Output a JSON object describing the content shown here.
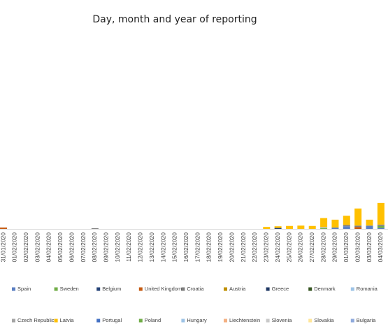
{
  "chart_data": {
    "type": "bar",
    "stacked": true,
    "title": "Day, month and year of reporting",
    "categories": [
      "31/01/2020",
      "01/02/2020",
      "02/02/2020",
      "03/02/2020",
      "04/02/2020",
      "05/02/2020",
      "06/02/2020",
      "07/02/2020",
      "08/02/2020",
      "09/02/2020",
      "10/02/2020",
      "11/02/2020",
      "12/02/2020",
      "13/02/2020",
      "14/02/2020",
      "15/02/2020",
      "16/02/2020",
      "17/02/2020",
      "18/02/2020",
      "19/02/2020",
      "20/02/2020",
      "21/02/2020",
      "22/02/2020",
      "23/02/2020",
      "24/02/2020",
      "25/02/2020",
      "26/02/2020",
      "27/02/2020",
      "28/02/2020",
      "29/02/2020",
      "01/03/2020",
      "02/03/2020",
      "03/03/2020",
      "04/03/2020"
    ],
    "ylim": [
      0,
      600
    ],
    "series": [
      {
        "name": "Spain",
        "color": "#5b7fc2",
        "values": [
          0,
          0,
          0,
          0,
          0,
          0,
          0,
          0,
          0,
          0,
          0,
          0,
          0,
          0,
          0,
          0,
          0,
          0,
          0,
          0,
          0,
          0,
          0,
          0,
          0,
          0,
          0,
          0,
          0,
          4,
          8,
          0,
          10,
          3
        ]
      },
      {
        "name": "Sweden",
        "color": "#70ad47",
        "values": [
          0,
          0,
          0,
          0,
          0,
          0,
          0,
          0,
          0,
          0,
          0,
          0,
          0,
          0,
          0,
          0,
          0,
          0,
          0,
          0,
          0,
          0,
          0,
          0,
          0,
          0,
          0,
          0,
          2,
          0,
          0,
          0,
          0,
          6
        ]
      },
      {
        "name": "Belgium",
        "color": "#264478",
        "values": [
          0,
          0,
          0,
          0,
          0,
          0,
          0,
          0,
          0,
          0,
          0,
          0,
          0,
          0,
          0,
          0,
          0,
          0,
          0,
          0,
          0,
          0,
          0,
          0,
          3,
          0,
          0,
          0,
          0,
          0,
          0,
          0,
          0,
          0
        ]
      },
      {
        "name": "United Kingdom",
        "color": "#c55a11",
        "values": [
          4,
          0,
          0,
          0,
          0,
          0,
          0,
          0,
          0,
          0,
          0,
          0,
          0,
          0,
          0,
          0,
          0,
          0,
          0,
          0,
          0,
          0,
          0,
          0,
          0,
          0,
          0,
          0,
          0,
          0,
          0,
          6,
          0,
          0
        ]
      },
      {
        "name": "Croatia",
        "color": "#7f7f7f",
        "values": [
          0,
          0,
          0,
          0,
          0,
          0,
          0,
          0,
          2,
          0,
          0,
          0,
          0,
          0,
          0,
          0,
          0,
          0,
          0,
          0,
          0,
          0,
          0,
          0,
          0,
          0,
          0,
          0,
          0,
          0,
          4,
          4,
          0,
          4
        ]
      },
      {
        "name": "Austria",
        "color": "#bf9000",
        "values": [
          0,
          0,
          0,
          0,
          0,
          0,
          0,
          0,
          0,
          0,
          0,
          0,
          0,
          0,
          0,
          0,
          0,
          0,
          0,
          0,
          0,
          0,
          0,
          0,
          0,
          0,
          0,
          0,
          0,
          0,
          0,
          0,
          0,
          0
        ]
      },
      {
        "name": "Greece",
        "color": "#203864",
        "values": [
          0,
          0,
          0,
          0,
          0,
          0,
          0,
          0,
          0,
          0,
          0,
          0,
          0,
          0,
          0,
          0,
          0,
          0,
          0,
          0,
          0,
          0,
          0,
          0,
          0,
          0,
          0,
          0,
          0,
          0,
          0,
          0,
          0,
          0
        ]
      },
      {
        "name": "Denmark",
        "color": "#375623",
        "values": [
          0,
          0,
          0,
          0,
          0,
          0,
          0,
          0,
          0,
          0,
          0,
          0,
          0,
          0,
          0,
          0,
          0,
          0,
          0,
          0,
          0,
          0,
          0,
          0,
          0,
          0,
          0,
          0,
          0,
          0,
          0,
          0,
          0,
          0
        ]
      },
      {
        "name": "Romania",
        "color": "#9dc3e6",
        "values": [
          0,
          0,
          0,
          0,
          0,
          0,
          0,
          0,
          0,
          0,
          0,
          0,
          0,
          0,
          0,
          0,
          0,
          0,
          0,
          0,
          0,
          0,
          0,
          0,
          0,
          0,
          0,
          0,
          3,
          0,
          0,
          0,
          0,
          0
        ]
      },
      {
        "name": "Czech Republic",
        "color": "#a5a5a5",
        "values": [
          0,
          0,
          0,
          0,
          0,
          0,
          0,
          0,
          0,
          0,
          0,
          0,
          0,
          0,
          0,
          0,
          0,
          0,
          0,
          0,
          0,
          0,
          0,
          0,
          0,
          0,
          0,
          0,
          0,
          0,
          0,
          0,
          0,
          0
        ]
      },
      {
        "name": "Latvia",
        "color": "#ffc000",
        "values": [
          0,
          0,
          0,
          0,
          0,
          0,
          0,
          0,
          0,
          0,
          0,
          0,
          0,
          0,
          0,
          0,
          0,
          0,
          0,
          0,
          0,
          0,
          0,
          6,
          5,
          9,
          10,
          9,
          28,
          24,
          28,
          52,
          18,
          66
        ]
      },
      {
        "name": "Portugal",
        "color": "#4472c4",
        "values": [
          0,
          0,
          0,
          0,
          0,
          0,
          0,
          0,
          0,
          0,
          0,
          0,
          0,
          0,
          0,
          0,
          0,
          0,
          0,
          0,
          0,
          0,
          0,
          0,
          0,
          0,
          0,
          0,
          0,
          0,
          0,
          0,
          0,
          0
        ]
      },
      {
        "name": "Poland",
        "color": "#70ad47",
        "values": [
          0,
          0,
          0,
          0,
          0,
          0,
          0,
          0,
          0,
          0,
          0,
          0,
          0,
          0,
          0,
          0,
          0,
          0,
          0,
          0,
          0,
          0,
          0,
          0,
          0,
          0,
          0,
          0,
          0,
          0,
          0,
          0,
          0,
          0
        ]
      },
      {
        "name": "Hungary",
        "color": "#9dc3e6",
        "values": [
          0,
          0,
          0,
          0,
          0,
          0,
          0,
          0,
          0,
          0,
          0,
          0,
          0,
          0,
          0,
          0,
          0,
          0,
          0,
          0,
          0,
          0,
          0,
          0,
          0,
          0,
          0,
          0,
          0,
          0,
          0,
          0,
          0,
          0
        ]
      },
      {
        "name": "Liechtenstein",
        "color": "#f4b183",
        "values": [
          0,
          0,
          0,
          0,
          0,
          0,
          0,
          0,
          0,
          0,
          0,
          0,
          0,
          0,
          0,
          0,
          0,
          0,
          0,
          0,
          0,
          0,
          0,
          0,
          0,
          0,
          0,
          0,
          0,
          0,
          0,
          0,
          0,
          0
        ]
      },
      {
        "name": "Slovenia",
        "color": "#c9c9c9",
        "values": [
          0,
          0,
          0,
          0,
          0,
          0,
          0,
          0,
          0,
          0,
          0,
          0,
          0,
          0,
          0,
          0,
          0,
          0,
          0,
          0,
          0,
          0,
          0,
          0,
          0,
          0,
          0,
          0,
          0,
          0,
          0,
          0,
          0,
          0
        ]
      },
      {
        "name": "Slovakia",
        "color": "#ffe699",
        "values": [
          0,
          0,
          0,
          0,
          0,
          0,
          0,
          0,
          0,
          0,
          0,
          0,
          0,
          0,
          0,
          0,
          0,
          0,
          0,
          0,
          0,
          0,
          0,
          0,
          0,
          0,
          0,
          0,
          0,
          0,
          0,
          0,
          0,
          0
        ]
      },
      {
        "name": "Bulgaria",
        "color": "#8faadc",
        "values": [
          0,
          0,
          0,
          0,
          0,
          0,
          0,
          0,
          0,
          0,
          0,
          0,
          0,
          0,
          0,
          0,
          0,
          0,
          0,
          0,
          0,
          0,
          0,
          0,
          0,
          0,
          0,
          0,
          0,
          0,
          0,
          0,
          0,
          0
        ]
      }
    ]
  }
}
